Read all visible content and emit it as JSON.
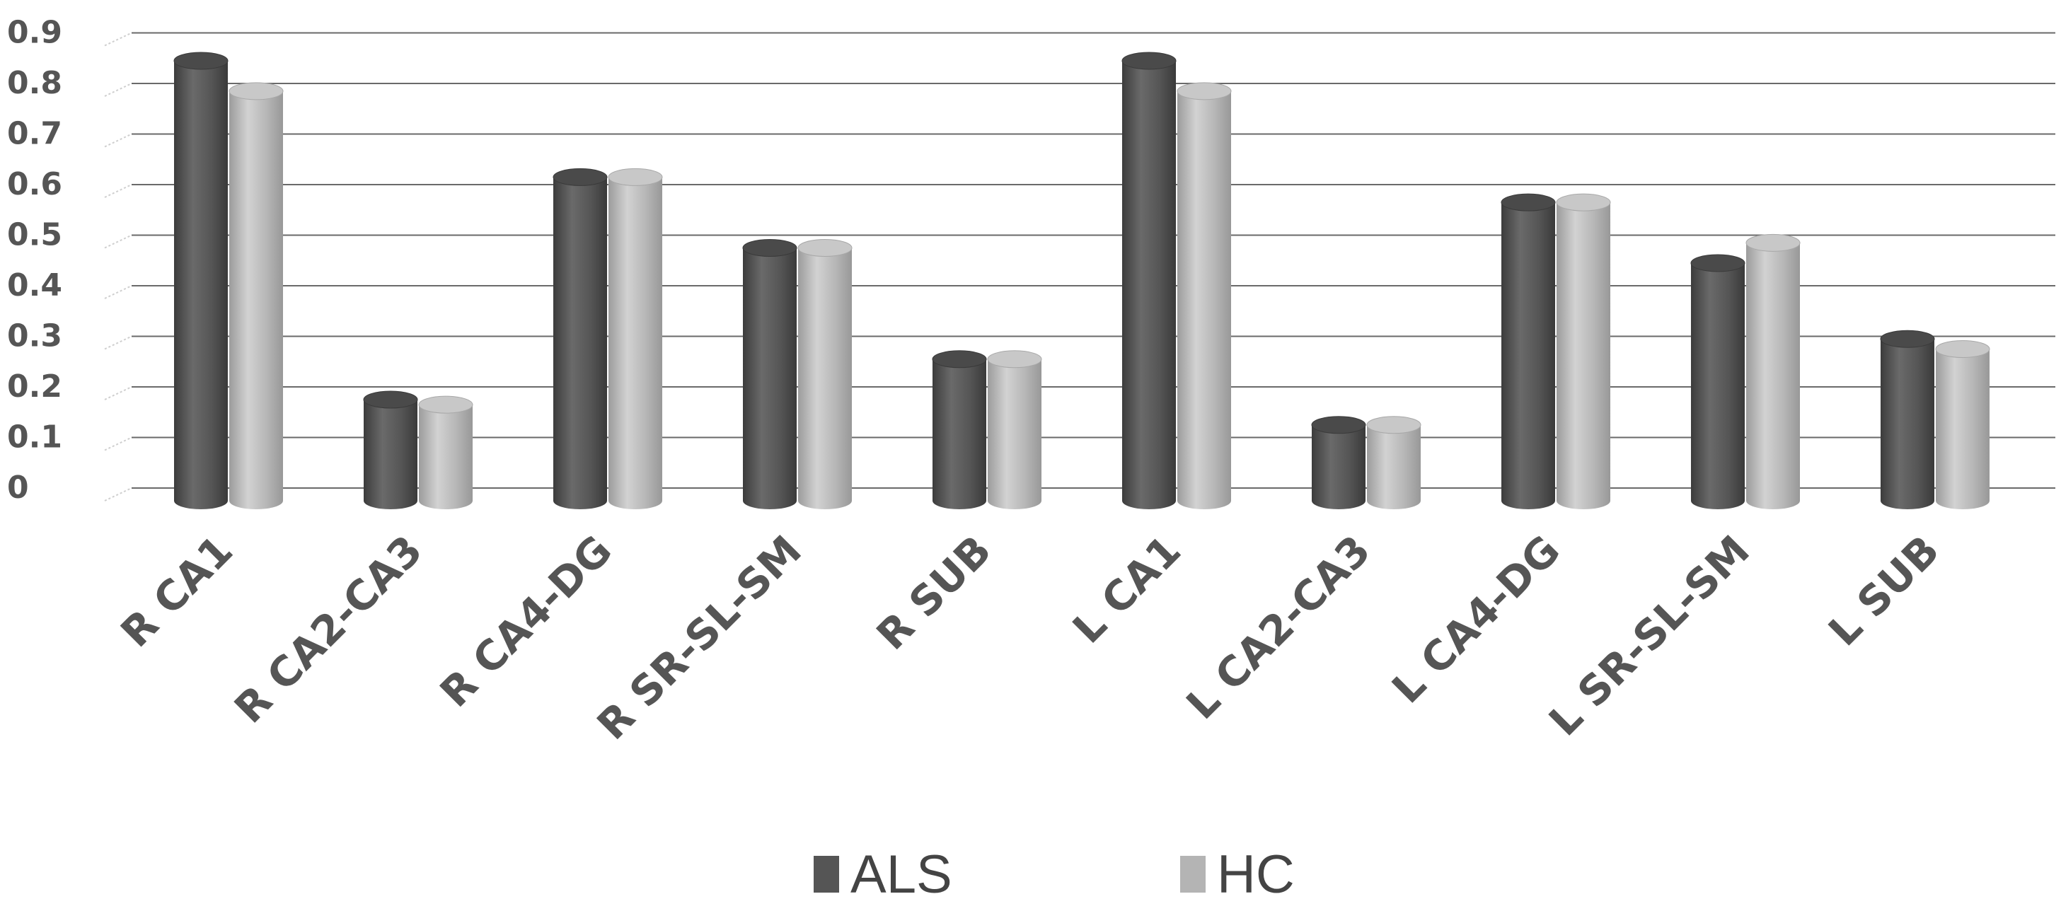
{
  "chart_data": {
    "type": "bar",
    "title": "",
    "xlabel": "",
    "ylabel": "",
    "ylim": [
      0,
      0.9
    ],
    "yticks": [
      "0",
      "0.1",
      "0.2",
      "0.3",
      "0.4",
      "0.5",
      "0.6",
      "0.7",
      "0.8",
      "0.9"
    ],
    "grid": true,
    "legend_position": "bottom",
    "categories": [
      "R CA1",
      "R CA2-CA3",
      "R CA4-DG",
      "R SR-SL-SM",
      "R SUB",
      "L CA1",
      "L CA2-CA3",
      "L CA4-DG",
      "L SR-SL-SM",
      "L SUB"
    ],
    "series": [
      {
        "name": "ALS",
        "color": "#555555",
        "values": [
          0.87,
          0.2,
          0.64,
          0.5,
          0.28,
          0.87,
          0.15,
          0.59,
          0.47,
          0.32
        ]
      },
      {
        "name": "HC",
        "color": "#b4b4b4",
        "values": [
          0.81,
          0.19,
          0.64,
          0.5,
          0.28,
          0.81,
          0.15,
          0.59,
          0.51,
          0.3
        ]
      }
    ]
  }
}
